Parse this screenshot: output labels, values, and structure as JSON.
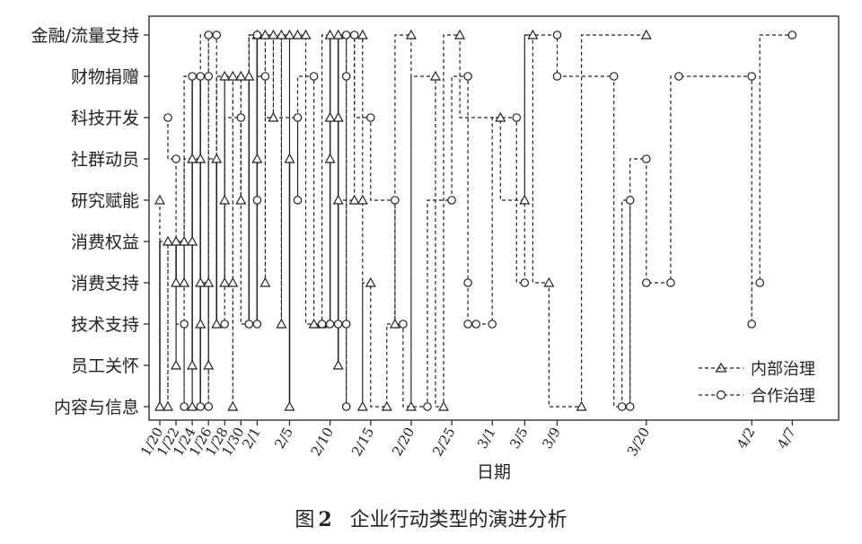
{
  "chart_data": {
    "type": "scatter",
    "xlabel": "日期",
    "x_tick_labels": [
      "1/20",
      "1/22",
      "1/24",
      "1/26",
      "1/28",
      "1/30",
      "2/1",
      "2/5",
      "2/10",
      "2/15",
      "2/20",
      "2/25",
      "3/1",
      "3/5",
      "3/9",
      "3/20",
      "4/2",
      "4/7"
    ],
    "categories": [
      "内容与信息",
      "员工关怀",
      "技术支持",
      "消费支持",
      "消费权益",
      "研究赋能",
      "社群动员",
      "科技开发",
      "财物捐赠",
      "金融/流量支持"
    ],
    "legend_placement": "lower-right",
    "grid": false,
    "series": [
      {
        "name": "内部治理",
        "marker": "triangle",
        "line": "dashed",
        "color": "#222222",
        "points": [
          {
            "x": "1/20",
            "y": "研究赋能"
          },
          {
            "x": "1/20",
            "y": "内容与信息"
          },
          {
            "x": "1/21",
            "y": "消费权益"
          },
          {
            "x": "1/21",
            "y": "内容与信息"
          },
          {
            "x": "1/22",
            "y": "消费权益"
          },
          {
            "x": "1/22",
            "y": "消费支持"
          },
          {
            "x": "1/22",
            "y": "员工关怀"
          },
          {
            "x": "1/23",
            "y": "消费权益"
          },
          {
            "x": "1/23",
            "y": "消费支持"
          },
          {
            "x": "1/24",
            "y": "社群动员"
          },
          {
            "x": "1/24",
            "y": "消费权益"
          },
          {
            "x": "1/24",
            "y": "员工关怀"
          },
          {
            "x": "1/24",
            "y": "内容与信息"
          },
          {
            "x": "1/25",
            "y": "社群动员"
          },
          {
            "x": "1/25",
            "y": "消费支持"
          },
          {
            "x": "1/25",
            "y": "技术支持"
          },
          {
            "x": "1/26",
            "y": "消费支持"
          },
          {
            "x": "1/26",
            "y": "员工关怀"
          },
          {
            "x": "1/27",
            "y": "社群动员"
          },
          {
            "x": "1/27",
            "y": "技术支持"
          },
          {
            "x": "1/28",
            "y": "财物捐赠"
          },
          {
            "x": "1/28",
            "y": "研究赋能"
          },
          {
            "x": "1/28",
            "y": "消费支持"
          },
          {
            "x": "1/29",
            "y": "财物捐赠"
          },
          {
            "x": "1/29",
            "y": "消费支持"
          },
          {
            "x": "1/29",
            "y": "内容与信息"
          },
          {
            "x": "1/30",
            "y": "财物捐赠"
          },
          {
            "x": "1/30",
            "y": "研究赋能"
          },
          {
            "x": "1/31",
            "y": "财物捐赠"
          },
          {
            "x": "2/1",
            "y": "金融/流量支持"
          },
          {
            "x": "2/1",
            "y": "社群动员"
          },
          {
            "x": "2/2",
            "y": "金融/流量支持"
          },
          {
            "x": "2/2",
            "y": "消费支持"
          },
          {
            "x": "2/3",
            "y": "金融/流量支持"
          },
          {
            "x": "2/3",
            "y": "科技开发"
          },
          {
            "x": "2/4",
            "y": "金融/流量支持"
          },
          {
            "x": "2/4",
            "y": "技术支持"
          },
          {
            "x": "2/5",
            "y": "金融/流量支持"
          },
          {
            "x": "2/5",
            "y": "社群动员"
          },
          {
            "x": "2/5",
            "y": "内容与信息"
          },
          {
            "x": "2/6",
            "y": "金融/流量支持"
          },
          {
            "x": "2/7",
            "y": "金融/流量支持"
          },
          {
            "x": "2/8",
            "y": "技术支持"
          },
          {
            "x": "2/9",
            "y": "技术支持"
          },
          {
            "x": "2/10",
            "y": "金融/流量支持"
          },
          {
            "x": "2/10",
            "y": "科技开发"
          },
          {
            "x": "2/10",
            "y": "社群动员"
          },
          {
            "x": "2/11",
            "y": "金融/流量支持"
          },
          {
            "x": "2/11",
            "y": "科技开发"
          },
          {
            "x": "2/11",
            "y": "研究赋能"
          },
          {
            "x": "2/11",
            "y": "员工关怀"
          },
          {
            "x": "2/13",
            "y": "研究赋能"
          },
          {
            "x": "2/14",
            "y": "金融/流量支持"
          },
          {
            "x": "2/14",
            "y": "研究赋能"
          },
          {
            "x": "2/14",
            "y": "内容与信息"
          },
          {
            "x": "2/15",
            "y": "消费支持"
          },
          {
            "x": "2/17",
            "y": "内容与信息"
          },
          {
            "x": "2/18",
            "y": "技术支持"
          },
          {
            "x": "2/20",
            "y": "金融/流量支持"
          },
          {
            "x": "2/20",
            "y": "内容与信息"
          },
          {
            "x": "2/23",
            "y": "财物捐赠"
          },
          {
            "x": "2/24",
            "y": "内容与信息"
          },
          {
            "x": "2/26",
            "y": "金融/流量支持"
          },
          {
            "x": "3/2",
            "y": "科技开发"
          },
          {
            "x": "3/5",
            "y": "研究赋能"
          },
          {
            "x": "3/6",
            "y": "金融/流量支持"
          },
          {
            "x": "3/8",
            "y": "消费支持"
          },
          {
            "x": "3/12",
            "y": "内容与信息"
          },
          {
            "x": "3/20",
            "y": "金融/流量支持"
          }
        ]
      },
      {
        "name": "合作治理",
        "marker": "circle",
        "line": "dashed",
        "color": "#222222",
        "points": [
          {
            "x": "1/21",
            "y": "科技开发"
          },
          {
            "x": "1/22",
            "y": "社群动员"
          },
          {
            "x": "1/23",
            "y": "技术支持"
          },
          {
            "x": "1/23",
            "y": "内容与信息"
          },
          {
            "x": "1/24",
            "y": "财物捐赠"
          },
          {
            "x": "1/25",
            "y": "财物捐赠"
          },
          {
            "x": "1/25",
            "y": "内容与信息"
          },
          {
            "x": "1/26",
            "y": "金融/流量支持"
          },
          {
            "x": "1/26",
            "y": "财物捐赠"
          },
          {
            "x": "1/26",
            "y": "内容与信息"
          },
          {
            "x": "1/27",
            "y": "金融/流量支持"
          },
          {
            "x": "1/28",
            "y": "技术支持"
          },
          {
            "x": "1/30",
            "y": "科技开发"
          },
          {
            "x": "1/31",
            "y": "技术支持"
          },
          {
            "x": "2/1",
            "y": "金融/流量支持"
          },
          {
            "x": "2/1",
            "y": "研究赋能"
          },
          {
            "x": "2/1",
            "y": "技术支持"
          },
          {
            "x": "2/2",
            "y": "财物捐赠"
          },
          {
            "x": "2/6",
            "y": "科技开发"
          },
          {
            "x": "2/6",
            "y": "研究赋能"
          },
          {
            "x": "2/8",
            "y": "财物捐赠"
          },
          {
            "x": "2/9",
            "y": "技术支持"
          },
          {
            "x": "2/10",
            "y": "技术支持"
          },
          {
            "x": "2/11",
            "y": "技术支持"
          },
          {
            "x": "2/12",
            "y": "金融/流量支持"
          },
          {
            "x": "2/12",
            "y": "财物捐赠"
          },
          {
            "x": "2/12",
            "y": "技术支持"
          },
          {
            "x": "2/12",
            "y": "内容与信息"
          },
          {
            "x": "2/13",
            "y": "金融/流量支持"
          },
          {
            "x": "2/15",
            "y": "科技开发"
          },
          {
            "x": "2/18",
            "y": "研究赋能"
          },
          {
            "x": "2/19",
            "y": "技术支持"
          },
          {
            "x": "2/22",
            "y": "内容与信息"
          },
          {
            "x": "2/25",
            "y": "研究赋能"
          },
          {
            "x": "2/27",
            "y": "财物捐赠"
          },
          {
            "x": "2/27",
            "y": "消费支持"
          },
          {
            "x": "2/27",
            "y": "技术支持"
          },
          {
            "x": "2/28",
            "y": "技术支持"
          },
          {
            "x": "3/1",
            "y": "技术支持"
          },
          {
            "x": "3/4",
            "y": "科技开发"
          },
          {
            "x": "3/5",
            "y": "消费支持"
          },
          {
            "x": "3/9",
            "y": "金融/流量支持"
          },
          {
            "x": "3/9",
            "y": "财物捐赠"
          },
          {
            "x": "3/16",
            "y": "财物捐赠"
          },
          {
            "x": "3/17",
            "y": "内容与信息"
          },
          {
            "x": "3/18",
            "y": "研究赋能"
          },
          {
            "x": "3/18",
            "y": "内容与信息"
          },
          {
            "x": "3/20",
            "y": "社群动员"
          },
          {
            "x": "3/20",
            "y": "消费支持"
          },
          {
            "x": "3/23",
            "y": "消费支持"
          },
          {
            "x": "3/24",
            "y": "财物捐赠"
          },
          {
            "x": "4/2",
            "y": "财物捐赠"
          },
          {
            "x": "4/2",
            "y": "技术支持"
          },
          {
            "x": "4/3",
            "y": "消费支持"
          },
          {
            "x": "4/7",
            "y": "金融/流量支持"
          }
        ]
      }
    ],
    "solid_segments": [
      {
        "x": "1/20",
        "from": "消费权益",
        "to": "内容与信息"
      },
      {
        "x": "1/22",
        "from": "消费权益",
        "to": "消费支持"
      },
      {
        "x": "1/24",
        "from": "财物捐赠",
        "to": "员工关怀"
      },
      {
        "x": "1/25",
        "from": "财物捐赠",
        "to": "内容与信息"
      },
      {
        "x": "1/27",
        "from": "社群动员",
        "to": "技术支持"
      },
      {
        "x": "1/31",
        "from": "财物捐赠",
        "to": "技术支持"
      },
      {
        "x": "2/1",
        "from": "金融/流量支持",
        "to": "技术支持"
      },
      {
        "x": "2/5",
        "from": "社群动员",
        "to": "内容与信息"
      },
      {
        "x": "2/10",
        "from": "金融/流量支持",
        "to": "技术支持"
      },
      {
        "x": "2/11",
        "from": "金融/流量支持",
        "to": "员工关怀"
      }
    ]
  },
  "caption": {
    "prefix": "图",
    "number": "2",
    "text": "企业行动类型的演进分析"
  }
}
